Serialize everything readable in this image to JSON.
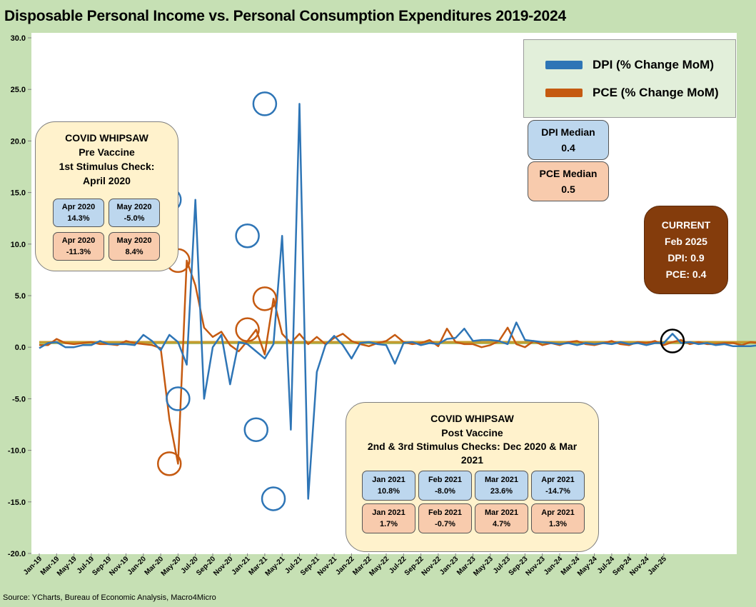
{
  "title": "Disposable Personal Income vs. Personal Consumption Expenditures 2019-2024",
  "source": "Source: YCharts, Bureau of Economic Analysis, Macro4Micro",
  "legend": {
    "dpi": "DPI (% Change MoM)",
    "pce": "PCE (% Change MoM)"
  },
  "medians": {
    "dpi": {
      "label": "DPI Median",
      "value": "0.4"
    },
    "pce": {
      "label": "PCE Median",
      "value": "0.5"
    }
  },
  "current": {
    "title": "CURRENT",
    "date": "Feb 2025",
    "dpi": "DPI:  0.9",
    "pce": "PCE:  0.4"
  },
  "pre_vaccine": {
    "line1": "COVID WHIPSAW",
    "line2": "Pre Vaccine",
    "line3": "1st Stimulus Check:",
    "line4": "April 2020",
    "cells": [
      {
        "month": "Apr 2020",
        "value": "14.3%",
        "kind": "dpi"
      },
      {
        "month": "May 2020",
        "value": "-5.0%",
        "kind": "dpi"
      },
      {
        "month": "Apr 2020",
        "value": "-11.3%",
        "kind": "pce"
      },
      {
        "month": "May 2020",
        "value": "8.4%",
        "kind": "pce"
      }
    ]
  },
  "post_vaccine": {
    "line1": "COVID WHIPSAW",
    "line2": "Post Vaccine",
    "line3": "2nd & 3rd Stimulus Checks: Dec 2020 & Mar 2021",
    "cells": [
      {
        "month": "Jan 2021",
        "value": "10.8%",
        "kind": "dpi"
      },
      {
        "month": "Feb 2021",
        "value": "-8.0%",
        "kind": "dpi"
      },
      {
        "month": "Mar 2021",
        "value": "23.6%",
        "kind": "dpi"
      },
      {
        "month": "Apr 2021",
        "value": "-14.7%",
        "kind": "dpi"
      },
      {
        "month": "Jan 2021",
        "value": "1.7%",
        "kind": "pce"
      },
      {
        "month": "Feb 2021",
        "value": "-0.7%",
        "kind": "pce"
      },
      {
        "month": "Mar 2021",
        "value": "4.7%",
        "kind": "pce"
      },
      {
        "month": "Apr 2021",
        "value": "1.3%",
        "kind": "pce"
      }
    ]
  },
  "chart_data": {
    "type": "line",
    "title": "Disposable Personal Income vs. Personal Consumption Expenditures 2019-2024",
    "ylim": [
      -20,
      30
    ],
    "yticks": [
      "30.0",
      "25.0",
      "20.0",
      "15.0",
      "10.0",
      "5.0",
      "0.0",
      "-5.0",
      "-10.0",
      "-15.0",
      "-20.0"
    ],
    "grid": false,
    "legend_position": "top-right",
    "x_tick_labels": [
      "Jan-19",
      "Mar-19",
      "May-19",
      "Jul-19",
      "Sep-19",
      "Nov-19",
      "Jan-20",
      "Mar-20",
      "May-20",
      "Jul-20",
      "Sep-20",
      "Nov-20",
      "Jan-21",
      "Mar-21",
      "May-21",
      "Jul-21",
      "Sep-21",
      "Nov-21",
      "Jan-22",
      "Mar-22",
      "May-22",
      "Jul-22",
      "Sep-22",
      "Nov-22",
      "Jan-23",
      "Mar-23",
      "May-23",
      "Jul-23",
      "Sep-23",
      "Nov-23",
      "Jan-24",
      "Mar-24",
      "May-24",
      "Jul-24",
      "Sep-24",
      "Nov-24",
      "Jan-25"
    ],
    "x_start": "Jan-19",
    "x_end": "Feb-25",
    "series": [
      {
        "name": "DPI (% Change MoM)",
        "color": "#2e75b6",
        "values": [
          -0.1,
          0.4,
          0.5,
          0.0,
          0.0,
          0.2,
          0.2,
          0.6,
          0.3,
          0.3,
          0.3,
          0.2,
          1.2,
          0.6,
          -0.3,
          1.2,
          0.5,
          -1.7,
          14.3,
          -5.0,
          0.0,
          1.2,
          -3.6,
          0.5,
          0.3,
          -0.4,
          -1.1,
          0.3,
          10.8,
          -8.0,
          23.6,
          -14.7,
          -2.4,
          0.2,
          1.1,
          0.2,
          -1.1,
          0.4,
          0.5,
          0.3,
          0.2,
          -1.6,
          0.4,
          0.5,
          0.2,
          0.4,
          0.3,
          0.8,
          0.9,
          1.8,
          0.6,
          0.7,
          0.7,
          0.6,
          0.3,
          2.4,
          0.7,
          0.6,
          0.5,
          0.4,
          0.3,
          0.4,
          0.2,
          0.4,
          0.3,
          0.4,
          0.3,
          0.5,
          0.3,
          0.4,
          0.2,
          0.4,
          0.4,
          1.3,
          0.4,
          0.5,
          0.3,
          0.4,
          0.2,
          0.3,
          0.1,
          0.1,
          0.1,
          0.2,
          0.4,
          0.5,
          0.3,
          0.5,
          0.3,
          0.4,
          0.1,
          0.7,
          0.9
        ]
      },
      {
        "name": "PCE (% Change MoM)",
        "color": "#c55a11",
        "values": [
          0.2,
          0.2,
          0.8,
          0.4,
          0.3,
          0.4,
          0.5,
          0.3,
          0.3,
          0.2,
          0.6,
          0.4,
          0.3,
          0.2,
          -0.1,
          -7.0,
          -11.3,
          8.4,
          6.0,
          1.9,
          1.0,
          1.5,
          0.2,
          -0.4,
          0.6,
          1.7,
          -0.7,
          4.7,
          1.3,
          0.4,
          1.3,
          0.3,
          1.0,
          0.3,
          0.9,
          1.3,
          0.6,
          0.3,
          0.1,
          0.4,
          0.6,
          1.2,
          0.5,
          0.3,
          0.4,
          0.7,
          0.1,
          1.8,
          0.5,
          0.3,
          0.3,
          0.0,
          0.2,
          0.6,
          1.9,
          0.3,
          0.0,
          0.6,
          0.2,
          0.4,
          0.2,
          0.5,
          0.6,
          0.3,
          0.2,
          0.4,
          0.6,
          0.3,
          0.2,
          0.5,
          0.4,
          0.6,
          0.2,
          0.5,
          0.7,
          0.3,
          0.5,
          0.3,
          0.3,
          0.4,
          0.4,
          0.2,
          0.5,
          0.4,
          0.5,
          0.6,
          0.3,
          0.5,
          0.4,
          0.4,
          0.8,
          -0.2,
          0.4
        ]
      }
    ],
    "median_lines": [
      {
        "name": "DPI Median",
        "value": 0.4,
        "color": "#a5b45a"
      },
      {
        "name": "PCE Median",
        "value": 0.5,
        "color": "#c59a2a"
      }
    ],
    "highlights": [
      {
        "series": "DPI (% Change MoM)",
        "x": "Apr-20",
        "y": 14.3,
        "color": "#2e75b6"
      },
      {
        "series": "DPI (% Change MoM)",
        "x": "May-20",
        "y": -5.0,
        "color": "#2e75b6"
      },
      {
        "series": "PCE (% Change MoM)",
        "x": "Apr-20",
        "y": -11.3,
        "color": "#c55a11"
      },
      {
        "series": "PCE (% Change MoM)",
        "x": "May-20",
        "y": 8.4,
        "color": "#c55a11"
      },
      {
        "series": "DPI (% Change MoM)",
        "x": "Jan-21",
        "y": 10.8,
        "color": "#2e75b6"
      },
      {
        "series": "DPI (% Change MoM)",
        "x": "Feb-21",
        "y": -8.0,
        "color": "#2e75b6"
      },
      {
        "series": "DPI (% Change MoM)",
        "x": "Mar-21",
        "y": 23.6,
        "color": "#2e75b6"
      },
      {
        "series": "DPI (% Change MoM)",
        "x": "Apr-21",
        "y": -14.7,
        "color": "#2e75b6"
      },
      {
        "series": "PCE (% Change MoM)",
        "x": "Jan-21",
        "y": 1.7,
        "color": "#c55a11"
      },
      {
        "series": "PCE (% Change MoM)",
        "x": "Mar-21",
        "y": 4.7,
        "color": "#c55a11"
      },
      {
        "series": "current",
        "x": "Feb-25",
        "y": 0.6,
        "color": "#000000"
      }
    ]
  }
}
